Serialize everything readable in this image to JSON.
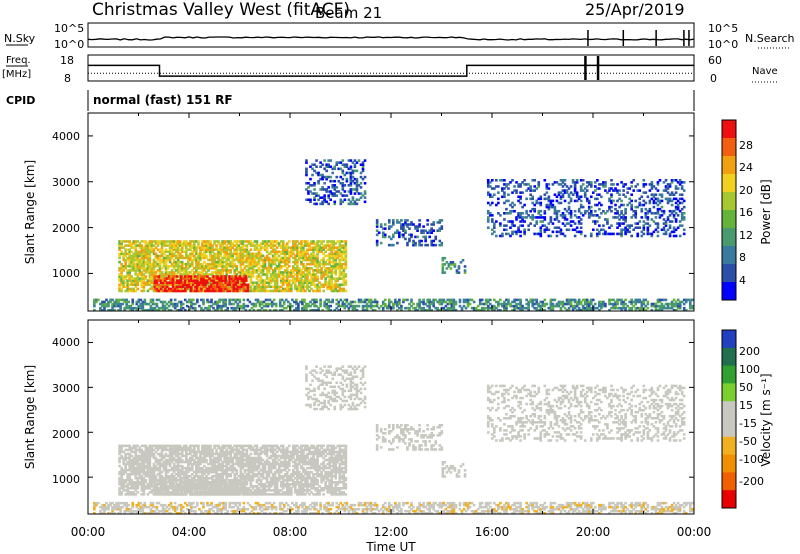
{
  "header": {
    "station": "Christmas Valley West (fitACF)",
    "beam": "Beam 21",
    "date": "25/Apr/2019"
  },
  "side_labels": {
    "nsky": "N.Sky",
    "freq": "Freq.",
    "freq_unit": "[MHz]",
    "cpid": "CPID",
    "nsearch": "N.Search",
    "nave": "Nave"
  },
  "noise_panel": {
    "left_ticks": [
      "10^5",
      "10^0"
    ],
    "right_ticks": [
      "10^5",
      "10^0"
    ]
  },
  "freq_panel": {
    "left_ticks": [
      "18",
      "8"
    ],
    "right_ticks": [
      "60",
      "0"
    ]
  },
  "cpid_text": "normal (fast) 151 RF",
  "x_axis": {
    "label": "Time UT",
    "ticks": [
      "00:00",
      "04:00",
      "08:00",
      "12:00",
      "16:00",
      "20:00",
      "00:00"
    ]
  },
  "power_panel": {
    "ylabel": "Slant Range [km]",
    "yticks": [
      "4000",
      "3000",
      "2000",
      "1000"
    ],
    "cbar_label": "Power [dB]",
    "cbar_ticks": [
      "28",
      "24",
      "20",
      "16",
      "12",
      "8",
      "4"
    ]
  },
  "velocity_panel": {
    "ylabel": "Slant Range [km]",
    "yticks": [
      "4000",
      "3000",
      "2000",
      "1000"
    ],
    "cbar_label": "Velocity [m s⁻¹]",
    "cbar_ticks": [
      "200",
      "100",
      "50",
      "15",
      "-15",
      "-50",
      "-100",
      "-200"
    ]
  },
  "chart_data": {
    "type": "heatmap",
    "x_range_hours": [
      0,
      24
    ],
    "y_range_km": [
      180,
      4500
    ],
    "power_scale": {
      "range_db": [
        0,
        32
      ],
      "colors": [
        "#0000ff",
        "#2a4fa8",
        "#3a7a9c",
        "#4a9a70",
        "#64b43c",
        "#a8c832",
        "#f0d020",
        "#f0a010",
        "#f06010",
        "#ee1010"
      ]
    },
    "velocity_scale": {
      "range": [
        -250,
        250
      ],
      "colors": [
        "#e80000",
        "#f06000",
        "#f09000",
        "#f0b020",
        "#c8c8c0",
        "#c8c8c0",
        "#7ad030",
        "#30a030",
        "#207050",
        "#2040c0"
      ]
    },
    "noise_level": 2.5,
    "freq_mhz_segments": [
      {
        "from": "00:00",
        "to": "02:50",
        "value": 14.0
      },
      {
        "from": "02:50",
        "to": "15:00",
        "value": 9.9
      },
      {
        "from": "15:00",
        "to": "24:00",
        "value": 14.0
      }
    ],
    "nave_level": 18,
    "regions": [
      {
        "name": "main echo",
        "t": [
          1.2,
          10.2
        ],
        "r": [
          600,
          1700
        ],
        "power_db": 20,
        "velocity": -5
      },
      {
        "name": "core",
        "t": [
          2.6,
          6.3
        ],
        "r": [
          600,
          950
        ],
        "power_db": 30,
        "velocity": 0
      },
      {
        "name": "group 08-10h",
        "t": [
          8.6,
          11.0
        ],
        "r": [
          2500,
          3450
        ],
        "power_db": 6,
        "velocity": 0
      },
      {
        "name": "group 11-14h",
        "t": [
          11.4,
          14.0
        ],
        "r": [
          1600,
          2150
        ],
        "power_db": 6,
        "velocity": 0
      },
      {
        "name": "patch 14-15h",
        "t": [
          14.0,
          14.9
        ],
        "r": [
          1000,
          1350
        ],
        "power_db": 10,
        "velocity": -10
      },
      {
        "name": "arc 16-23h",
        "t": [
          15.8,
          23.6
        ],
        "r": [
          1800,
          3050
        ],
        "power_db": 5,
        "velocity": 0
      },
      {
        "name": "near range",
        "t": [
          0.2,
          23.9
        ],
        "r": [
          180,
          420
        ],
        "power_db": 10,
        "velocity": -30
      }
    ]
  }
}
